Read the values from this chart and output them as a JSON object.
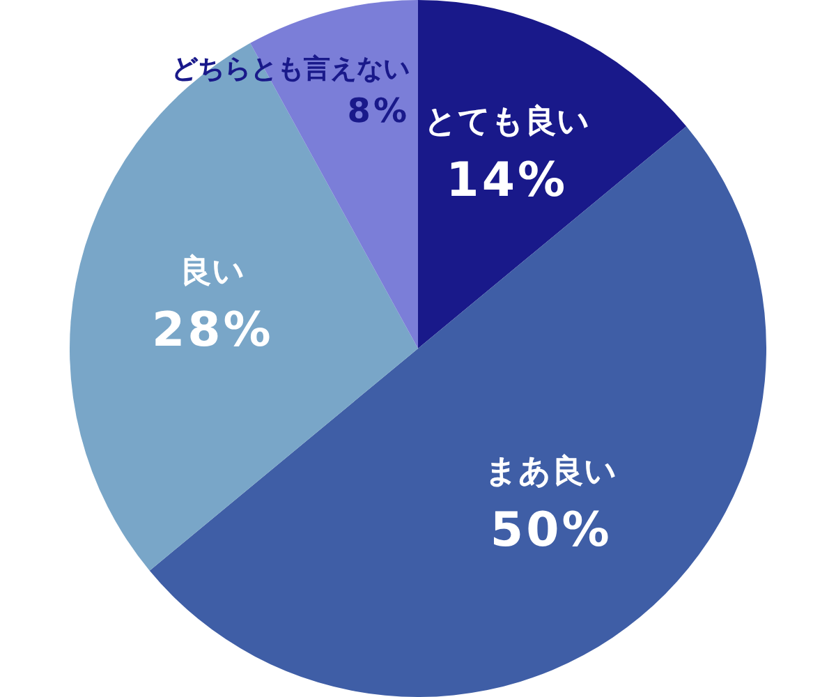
{
  "chart_data": {
    "type": "pie",
    "categories": [
      "とても良い",
      "まあ良い",
      "良い",
      "どちらとも言えない"
    ],
    "values": [
      14,
      50,
      28,
      8
    ],
    "colors": [
      "#19198a",
      "#3f5ea6",
      "#79a6c8",
      "#7b7ed8"
    ],
    "value_labels": [
      "14%",
      "50%",
      "28%",
      "8%"
    ]
  }
}
